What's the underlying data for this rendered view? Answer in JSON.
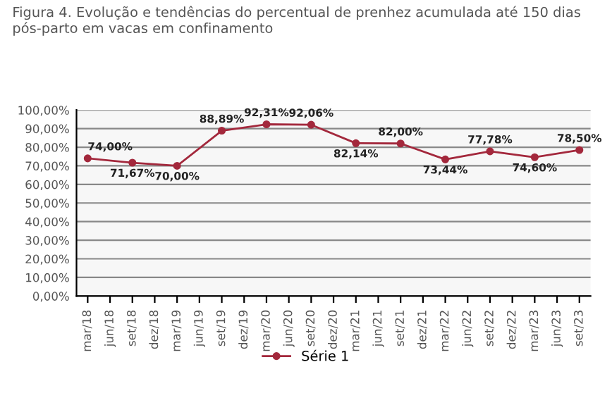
{
  "chart_data": {
    "type": "line",
    "title": "Figura 4. Evolução e tendências do percentual de prenhez acumulada até 150 dias pós-parto em vacas em confinamento",
    "categories": [
      "mar/18",
      "jun/18",
      "set/18",
      "dez/18",
      "mar/19",
      "jun/19",
      "set/19",
      "dez/19",
      "mar/20",
      "jun/20",
      "set/20",
      "dez/20",
      "mar/21",
      "jun/21",
      "set/21",
      "dez/21",
      "mar/22",
      "jun/22",
      "set/22",
      "dez/22",
      "mar/23",
      "jun/23",
      "set/23"
    ],
    "series": [
      {
        "name": "Série 1",
        "color": "#a3283c",
        "values": [
          74.0,
          null,
          71.67,
          null,
          70.0,
          null,
          88.89,
          null,
          92.31,
          null,
          92.06,
          null,
          82.14,
          null,
          82.0,
          null,
          73.44,
          null,
          77.78,
          null,
          74.6,
          null,
          78.5
        ],
        "value_labels": [
          "74,00%",
          null,
          "71,67%",
          null,
          "70,00%",
          null,
          "88,89%",
          null,
          "92,31%",
          null,
          "92,06%",
          null,
          "82,14%",
          null,
          "82,00%",
          null,
          "73,44%",
          null,
          "77,78%",
          null,
          "74,60%",
          null,
          "78,50%"
        ]
      }
    ],
    "ylim": [
      0,
      100
    ],
    "yticks": [
      {
        "value": 0,
        "label": "0,00%"
      },
      {
        "value": 10,
        "label": "10,00%"
      },
      {
        "value": 20,
        "label": "20,00%"
      },
      {
        "value": 30,
        "label": "30,00%"
      },
      {
        "value": 40,
        "label": "40,00%"
      },
      {
        "value": 50,
        "label": "50,00%"
      },
      {
        "value": 60,
        "label": "60,00%"
      },
      {
        "value": 70,
        "label": "70,00%"
      },
      {
        "value": 80,
        "label": "80,00%"
      },
      {
        "value": 90,
        "label": "90,00%"
      },
      {
        "value": 100,
        "label": "100,00%"
      }
    ],
    "grid": "y",
    "legend": "bottom",
    "marker": "circle",
    "line_style": "solid"
  }
}
